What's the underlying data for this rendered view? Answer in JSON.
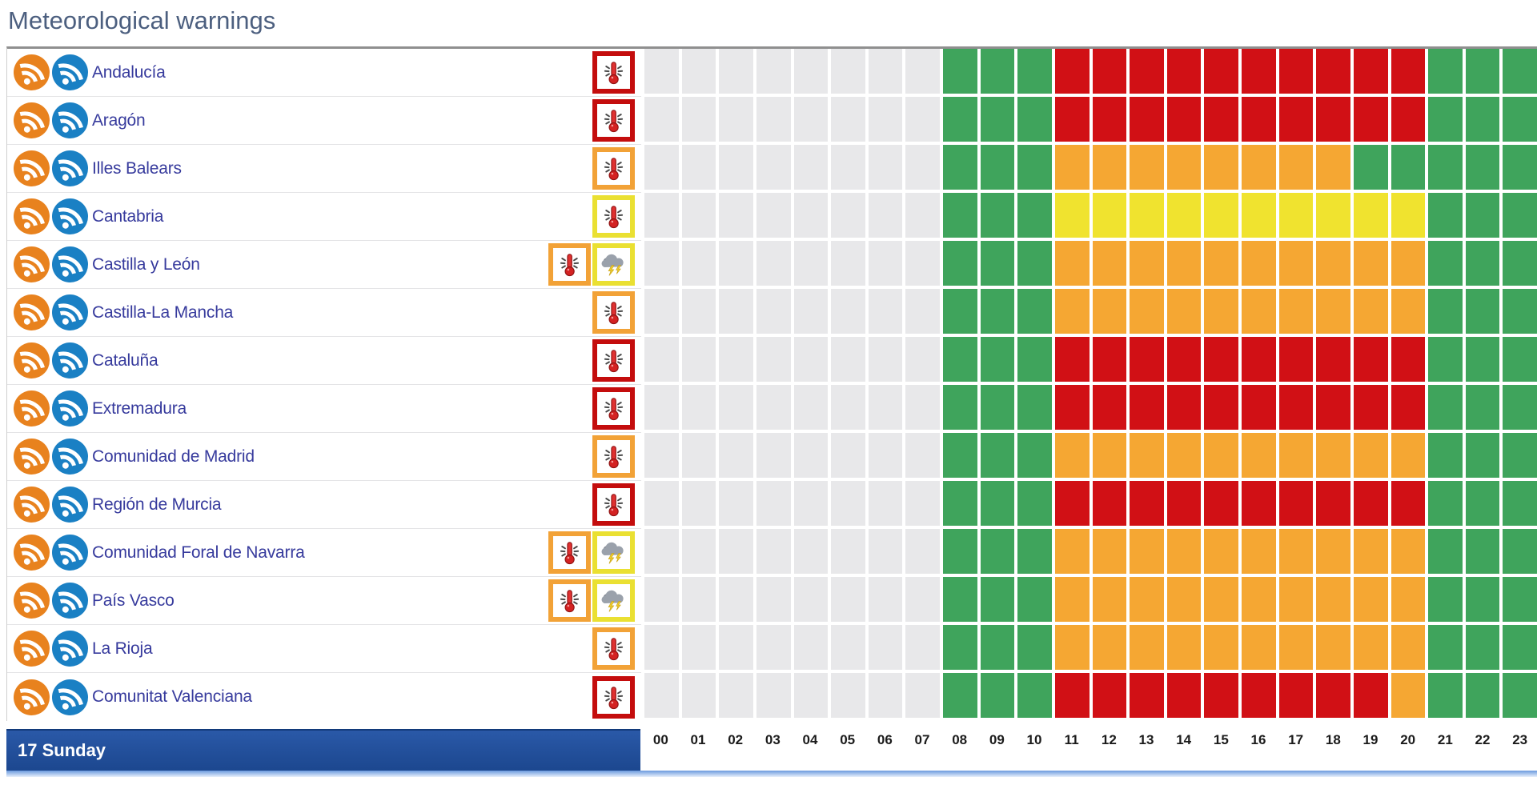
{
  "title": "Meteorological warnings",
  "date_bar": {
    "label": "17 Sunday"
  },
  "hours": [
    "00",
    "01",
    "02",
    "03",
    "04",
    "05",
    "06",
    "07",
    "08",
    "09",
    "10",
    "11",
    "12",
    "13",
    "14",
    "15",
    "16",
    "17",
    "18",
    "19",
    "20",
    "21",
    "22",
    "23"
  ],
  "cell_colors": {
    "p": "#e8e8ea",
    "g": "#3fa45c",
    "y": "#f0e32f",
    "o": "#f5a733",
    "r": "#d11015"
  },
  "cell_color_meaning": {
    "p": "past-hours-no-data",
    "g": "green-no-warning",
    "y": "yellow-warning",
    "o": "orange-warning",
    "r": "red-warning"
  },
  "warning_border_colors": {
    "red": "#c40d0d",
    "orange": "#f2a237",
    "yellow": "#eae032"
  },
  "rss_colors": {
    "orange": "#e8821e",
    "blue": "#1a80c4"
  },
  "accent": {
    "day_bar": "#1f4e9b",
    "underline": "#6b9ade",
    "title": "#4c5f7f",
    "region_link": "#373b9d"
  },
  "regions": [
    {
      "name": "Andalucía",
      "warnings": [
        {
          "type": "high-temperature",
          "level": "red"
        }
      ],
      "hours": [
        "p",
        "p",
        "p",
        "p",
        "p",
        "p",
        "p",
        "p",
        "g",
        "g",
        "g",
        "r",
        "r",
        "r",
        "r",
        "r",
        "r",
        "r",
        "r",
        "r",
        "r",
        "g",
        "g",
        "g"
      ]
    },
    {
      "name": "Aragón",
      "warnings": [
        {
          "type": "high-temperature",
          "level": "red"
        }
      ],
      "hours": [
        "p",
        "p",
        "p",
        "p",
        "p",
        "p",
        "p",
        "p",
        "g",
        "g",
        "g",
        "r",
        "r",
        "r",
        "r",
        "r",
        "r",
        "r",
        "r",
        "r",
        "r",
        "g",
        "g",
        "g"
      ]
    },
    {
      "name": "Illes Balears",
      "warnings": [
        {
          "type": "high-temperature",
          "level": "orange"
        }
      ],
      "hours": [
        "p",
        "p",
        "p",
        "p",
        "p",
        "p",
        "p",
        "p",
        "g",
        "g",
        "g",
        "o",
        "o",
        "o",
        "o",
        "o",
        "o",
        "o",
        "o",
        "g",
        "g",
        "g",
        "g",
        "g"
      ]
    },
    {
      "name": "Cantabria",
      "warnings": [
        {
          "type": "high-temperature",
          "level": "yellow"
        }
      ],
      "hours": [
        "p",
        "p",
        "p",
        "p",
        "p",
        "p",
        "p",
        "p",
        "g",
        "g",
        "g",
        "y",
        "y",
        "y",
        "y",
        "y",
        "y",
        "y",
        "y",
        "y",
        "y",
        "g",
        "g",
        "g"
      ]
    },
    {
      "name": "Castilla y León",
      "warnings": [
        {
          "type": "high-temperature",
          "level": "orange"
        },
        {
          "type": "storm",
          "level": "yellow"
        }
      ],
      "hours": [
        "p",
        "p",
        "p",
        "p",
        "p",
        "p",
        "p",
        "p",
        "g",
        "g",
        "g",
        "o",
        "o",
        "o",
        "o",
        "o",
        "o",
        "o",
        "o",
        "o",
        "o",
        "g",
        "g",
        "g"
      ]
    },
    {
      "name": "Castilla-La Mancha",
      "warnings": [
        {
          "type": "high-temperature",
          "level": "orange"
        }
      ],
      "hours": [
        "p",
        "p",
        "p",
        "p",
        "p",
        "p",
        "p",
        "p",
        "g",
        "g",
        "g",
        "o",
        "o",
        "o",
        "o",
        "o",
        "o",
        "o",
        "o",
        "o",
        "o",
        "g",
        "g",
        "g"
      ]
    },
    {
      "name": "Cataluña",
      "warnings": [
        {
          "type": "high-temperature",
          "level": "red"
        }
      ],
      "hours": [
        "p",
        "p",
        "p",
        "p",
        "p",
        "p",
        "p",
        "p",
        "g",
        "g",
        "g",
        "r",
        "r",
        "r",
        "r",
        "r",
        "r",
        "r",
        "r",
        "r",
        "r",
        "g",
        "g",
        "g"
      ]
    },
    {
      "name": "Extremadura",
      "warnings": [
        {
          "type": "high-temperature",
          "level": "red"
        }
      ],
      "hours": [
        "p",
        "p",
        "p",
        "p",
        "p",
        "p",
        "p",
        "p",
        "g",
        "g",
        "g",
        "r",
        "r",
        "r",
        "r",
        "r",
        "r",
        "r",
        "r",
        "r",
        "r",
        "g",
        "g",
        "g"
      ]
    },
    {
      "name": "Comunidad de Madrid",
      "warnings": [
        {
          "type": "high-temperature",
          "level": "orange"
        }
      ],
      "hours": [
        "p",
        "p",
        "p",
        "p",
        "p",
        "p",
        "p",
        "p",
        "g",
        "g",
        "g",
        "o",
        "o",
        "o",
        "o",
        "o",
        "o",
        "o",
        "o",
        "o",
        "o",
        "g",
        "g",
        "g"
      ]
    },
    {
      "name": "Región de Murcia",
      "warnings": [
        {
          "type": "high-temperature",
          "level": "red"
        }
      ],
      "hours": [
        "p",
        "p",
        "p",
        "p",
        "p",
        "p",
        "p",
        "p",
        "g",
        "g",
        "g",
        "r",
        "r",
        "r",
        "r",
        "r",
        "r",
        "r",
        "r",
        "r",
        "r",
        "g",
        "g",
        "g"
      ]
    },
    {
      "name": "Comunidad Foral de Navarra",
      "warnings": [
        {
          "type": "high-temperature",
          "level": "orange"
        },
        {
          "type": "storm",
          "level": "yellow"
        }
      ],
      "hours": [
        "p",
        "p",
        "p",
        "p",
        "p",
        "p",
        "p",
        "p",
        "g",
        "g",
        "g",
        "o",
        "o",
        "o",
        "o",
        "o",
        "o",
        "o",
        "o",
        "o",
        "o",
        "g",
        "g",
        "g"
      ]
    },
    {
      "name": "País Vasco",
      "warnings": [
        {
          "type": "high-temperature",
          "level": "orange"
        },
        {
          "type": "storm",
          "level": "yellow"
        }
      ],
      "hours": [
        "p",
        "p",
        "p",
        "p",
        "p",
        "p",
        "p",
        "p",
        "g",
        "g",
        "g",
        "o",
        "o",
        "o",
        "o",
        "o",
        "o",
        "o",
        "o",
        "o",
        "o",
        "g",
        "g",
        "g"
      ]
    },
    {
      "name": "La Rioja",
      "warnings": [
        {
          "type": "high-temperature",
          "level": "orange"
        }
      ],
      "hours": [
        "p",
        "p",
        "p",
        "p",
        "p",
        "p",
        "p",
        "p",
        "g",
        "g",
        "g",
        "o",
        "o",
        "o",
        "o",
        "o",
        "o",
        "o",
        "o",
        "o",
        "o",
        "g",
        "g",
        "g"
      ]
    },
    {
      "name": "Comunitat Valenciana",
      "warnings": [
        {
          "type": "high-temperature",
          "level": "red"
        }
      ],
      "hours": [
        "p",
        "p",
        "p",
        "p",
        "p",
        "p",
        "p",
        "p",
        "g",
        "g",
        "g",
        "r",
        "r",
        "r",
        "r",
        "r",
        "r",
        "r",
        "r",
        "r",
        "o",
        "g",
        "g",
        "g"
      ]
    }
  ]
}
